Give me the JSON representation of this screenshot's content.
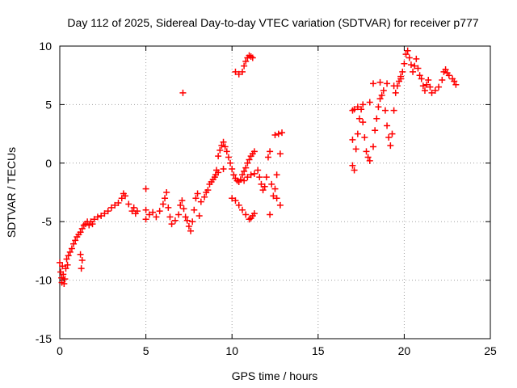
{
  "chart_data": {
    "type": "scatter",
    "title": "Day 112 of 2025, Sidereal Day-to-day VTEC variation (SDTVAR) for receiver p777",
    "xlabel": "GPS time / hours",
    "ylabel": "SDTVAR / TECUs",
    "xlim": [
      0,
      25
    ],
    "ylim": [
      -15,
      10
    ],
    "xticks": [
      0,
      5,
      10,
      15,
      20,
      25
    ],
    "yticks": [
      -15,
      -10,
      -5,
      0,
      5,
      10
    ],
    "grid": true,
    "marker": "+",
    "color": "#ff0000",
    "series": [
      {
        "points": [
          [
            0.0,
            -8.5
          ],
          [
            0.05,
            -9.3
          ],
          [
            0.1,
            -9.8
          ],
          [
            0.12,
            -10.2
          ],
          [
            0.15,
            -8.8
          ],
          [
            0.2,
            -9.5
          ],
          [
            0.25,
            -10.3
          ],
          [
            0.3,
            -9.9
          ],
          [
            0.35,
            -9.0
          ],
          [
            0.4,
            -8.2
          ],
          [
            0.45,
            -8.7
          ],
          [
            0.5,
            -7.9
          ],
          [
            0.6,
            -7.6
          ],
          [
            0.7,
            -7.3
          ],
          [
            0.8,
            -6.9
          ],
          [
            0.9,
            -6.6
          ],
          [
            1.0,
            -6.3
          ],
          [
            1.1,
            -6.1
          ],
          [
            1.2,
            -5.9
          ],
          [
            1.3,
            -5.6
          ],
          [
            1.4,
            -5.3
          ],
          [
            1.2,
            -7.8
          ],
          [
            1.3,
            -8.3
          ],
          [
            1.25,
            -9.0
          ],
          [
            1.5,
            -5.2
          ],
          [
            1.6,
            -5.0
          ],
          [
            1.7,
            -5.3
          ],
          [
            1.8,
            -5.0
          ],
          [
            1.9,
            -5.2
          ],
          [
            2.0,
            -4.8
          ],
          [
            2.2,
            -4.6
          ],
          [
            2.4,
            -4.5
          ],
          [
            2.6,
            -4.3
          ],
          [
            2.8,
            -4.1
          ],
          [
            3.0,
            -3.8
          ],
          [
            3.2,
            -3.6
          ],
          [
            3.4,
            -3.4
          ],
          [
            3.6,
            -3.0
          ],
          [
            3.7,
            -2.6
          ],
          [
            3.8,
            -2.8
          ],
          [
            4.0,
            -3.5
          ],
          [
            4.2,
            -4.1
          ],
          [
            4.3,
            -3.8
          ],
          [
            4.4,
            -4.3
          ],
          [
            4.5,
            -4.1
          ],
          [
            5.0,
            -4.0
          ],
          [
            5.0,
            -2.2
          ],
          [
            5.0,
            -4.8
          ],
          [
            5.2,
            -4.4
          ],
          [
            5.4,
            -4.2
          ],
          [
            5.6,
            -4.6
          ],
          [
            5.8,
            -4.1
          ],
          [
            6.0,
            -3.5
          ],
          [
            6.1,
            -3.0
          ],
          [
            6.2,
            -2.5
          ],
          [
            6.3,
            -3.8
          ],
          [
            6.4,
            -4.6
          ],
          [
            6.5,
            -5.2
          ],
          [
            6.7,
            -4.9
          ],
          [
            6.9,
            -4.4
          ],
          [
            7.0,
            -3.6
          ],
          [
            7.1,
            -3.2
          ],
          [
            7.15,
            6.0
          ],
          [
            7.2,
            -3.9
          ],
          [
            7.3,
            -4.6
          ],
          [
            7.4,
            -4.9
          ],
          [
            7.5,
            -5.4
          ],
          [
            7.6,
            -5.8
          ],
          [
            7.7,
            -5.0
          ],
          [
            7.8,
            -4.0
          ],
          [
            7.9,
            -3.0
          ],
          [
            8.0,
            -2.6
          ],
          [
            8.1,
            -4.5
          ],
          [
            8.2,
            -3.3
          ],
          [
            8.4,
            -2.9
          ],
          [
            8.5,
            -2.5
          ],
          [
            8.6,
            -2.3
          ],
          [
            8.7,
            -1.8
          ],
          [
            8.8,
            -1.6
          ],
          [
            8.9,
            -1.4
          ],
          [
            9.0,
            -1.2
          ],
          [
            9.05,
            -1.0
          ],
          [
            9.1,
            -0.6
          ],
          [
            9.2,
            0.6
          ],
          [
            9.2,
            -0.8
          ],
          [
            9.3,
            1.1
          ],
          [
            9.4,
            1.5
          ],
          [
            9.5,
            1.8
          ],
          [
            9.5,
            -0.5
          ],
          [
            9.6,
            1.4
          ],
          [
            9.7,
            1.0
          ],
          [
            9.8,
            0.5
          ],
          [
            9.9,
            0.0
          ],
          [
            10.0,
            -0.5
          ],
          [
            10.1,
            -1.0
          ],
          [
            10.2,
            -1.3
          ],
          [
            10.3,
            -1.5
          ],
          [
            10.4,
            -1.6
          ],
          [
            10.5,
            -1.4
          ],
          [
            10.6,
            -1.0
          ],
          [
            10.7,
            -0.7
          ],
          [
            10.8,
            -0.4
          ],
          [
            10.9,
            0.0
          ],
          [
            11.0,
            0.3
          ],
          [
            11.1,
            0.6
          ],
          [
            11.2,
            0.8
          ],
          [
            11.3,
            1.0
          ],
          [
            10.7,
            -1.5
          ],
          [
            10.9,
            -1.2
          ],
          [
            11.1,
            -1.0
          ],
          [
            11.3,
            -0.9
          ],
          [
            10.0,
            -3.0
          ],
          [
            10.2,
            -3.2
          ],
          [
            10.4,
            -3.6
          ],
          [
            10.6,
            -4.0
          ],
          [
            10.8,
            -4.4
          ],
          [
            11.0,
            -4.8
          ],
          [
            11.1,
            -4.7
          ],
          [
            11.2,
            -4.5
          ],
          [
            11.3,
            -4.3
          ],
          [
            10.2,
            7.8
          ],
          [
            10.4,
            7.6
          ],
          [
            10.6,
            7.8
          ],
          [
            10.7,
            8.3
          ],
          [
            10.8,
            8.7
          ],
          [
            10.9,
            9.0
          ],
          [
            11.0,
            9.2
          ],
          [
            11.1,
            9.1
          ],
          [
            11.2,
            9.0
          ],
          [
            11.5,
            -0.6
          ],
          [
            11.6,
            -1.2
          ],
          [
            11.7,
            -1.8
          ],
          [
            11.8,
            -2.3
          ],
          [
            11.9,
            -2.0
          ],
          [
            12.0,
            -1.2
          ],
          [
            12.1,
            0.5
          ],
          [
            12.2,
            1.0
          ],
          [
            12.3,
            -1.8
          ],
          [
            12.4,
            -2.8
          ],
          [
            12.5,
            -2.2
          ],
          [
            12.6,
            -1.0
          ],
          [
            12.5,
            2.4
          ],
          [
            12.7,
            2.5
          ],
          [
            12.9,
            2.6
          ],
          [
            12.8,
            0.8
          ],
          [
            12.8,
            -3.6
          ],
          [
            12.2,
            -4.4
          ],
          [
            12.6,
            -3.0
          ],
          [
            17.0,
            4.5
          ],
          [
            17.0,
            2.0
          ],
          [
            17.0,
            -0.2
          ],
          [
            17.1,
            -0.6
          ],
          [
            17.2,
            1.2
          ],
          [
            17.3,
            2.5
          ],
          [
            17.4,
            3.8
          ],
          [
            17.5,
            4.6
          ],
          [
            17.6,
            3.5
          ],
          [
            17.7,
            2.2
          ],
          [
            17.8,
            1.0
          ],
          [
            17.9,
            0.5
          ],
          [
            18.0,
            0.2
          ],
          [
            18.2,
            1.4
          ],
          [
            18.3,
            2.8
          ],
          [
            18.4,
            3.8
          ],
          [
            18.5,
            4.8
          ],
          [
            18.6,
            5.5
          ],
          [
            18.7,
            5.8
          ],
          [
            18.8,
            6.2
          ],
          [
            18.9,
            4.5
          ],
          [
            19.0,
            3.2
          ],
          [
            19.1,
            2.2
          ],
          [
            19.2,
            1.5
          ],
          [
            19.3,
            2.5
          ],
          [
            19.4,
            4.5
          ],
          [
            19.5,
            6.0
          ],
          [
            19.6,
            6.6
          ],
          [
            19.7,
            7.0
          ],
          [
            19.8,
            7.4
          ],
          [
            19.9,
            7.8
          ],
          [
            20.0,
            8.5
          ],
          [
            20.1,
            9.3
          ],
          [
            20.2,
            9.6
          ],
          [
            20.3,
            9.0
          ],
          [
            20.4,
            8.4
          ],
          [
            20.5,
            7.8
          ],
          [
            20.6,
            8.3
          ],
          [
            20.7,
            8.9
          ],
          [
            20.8,
            8.1
          ],
          [
            20.9,
            7.5
          ],
          [
            21.0,
            7.2
          ],
          [
            21.1,
            6.6
          ],
          [
            21.2,
            6.2
          ],
          [
            21.3,
            6.7
          ],
          [
            21.4,
            7.1
          ],
          [
            21.5,
            6.5
          ],
          [
            21.6,
            6.0
          ],
          [
            21.8,
            6.2
          ],
          [
            22.0,
            6.5
          ],
          [
            22.2,
            7.1
          ],
          [
            22.3,
            7.8
          ],
          [
            22.4,
            8.0
          ],
          [
            22.5,
            7.7
          ],
          [
            22.6,
            7.5
          ],
          [
            22.8,
            7.2
          ],
          [
            22.9,
            7.0
          ],
          [
            23.0,
            6.7
          ],
          [
            18.2,
            6.8
          ],
          [
            18.6,
            6.9
          ],
          [
            19.0,
            6.8
          ],
          [
            19.4,
            6.6
          ],
          [
            19.8,
            7.2
          ],
          [
            18.0,
            5.2
          ],
          [
            17.6,
            5.0
          ],
          [
            17.3,
            4.8
          ],
          [
            17.1,
            4.6
          ]
        ]
      }
    ]
  }
}
